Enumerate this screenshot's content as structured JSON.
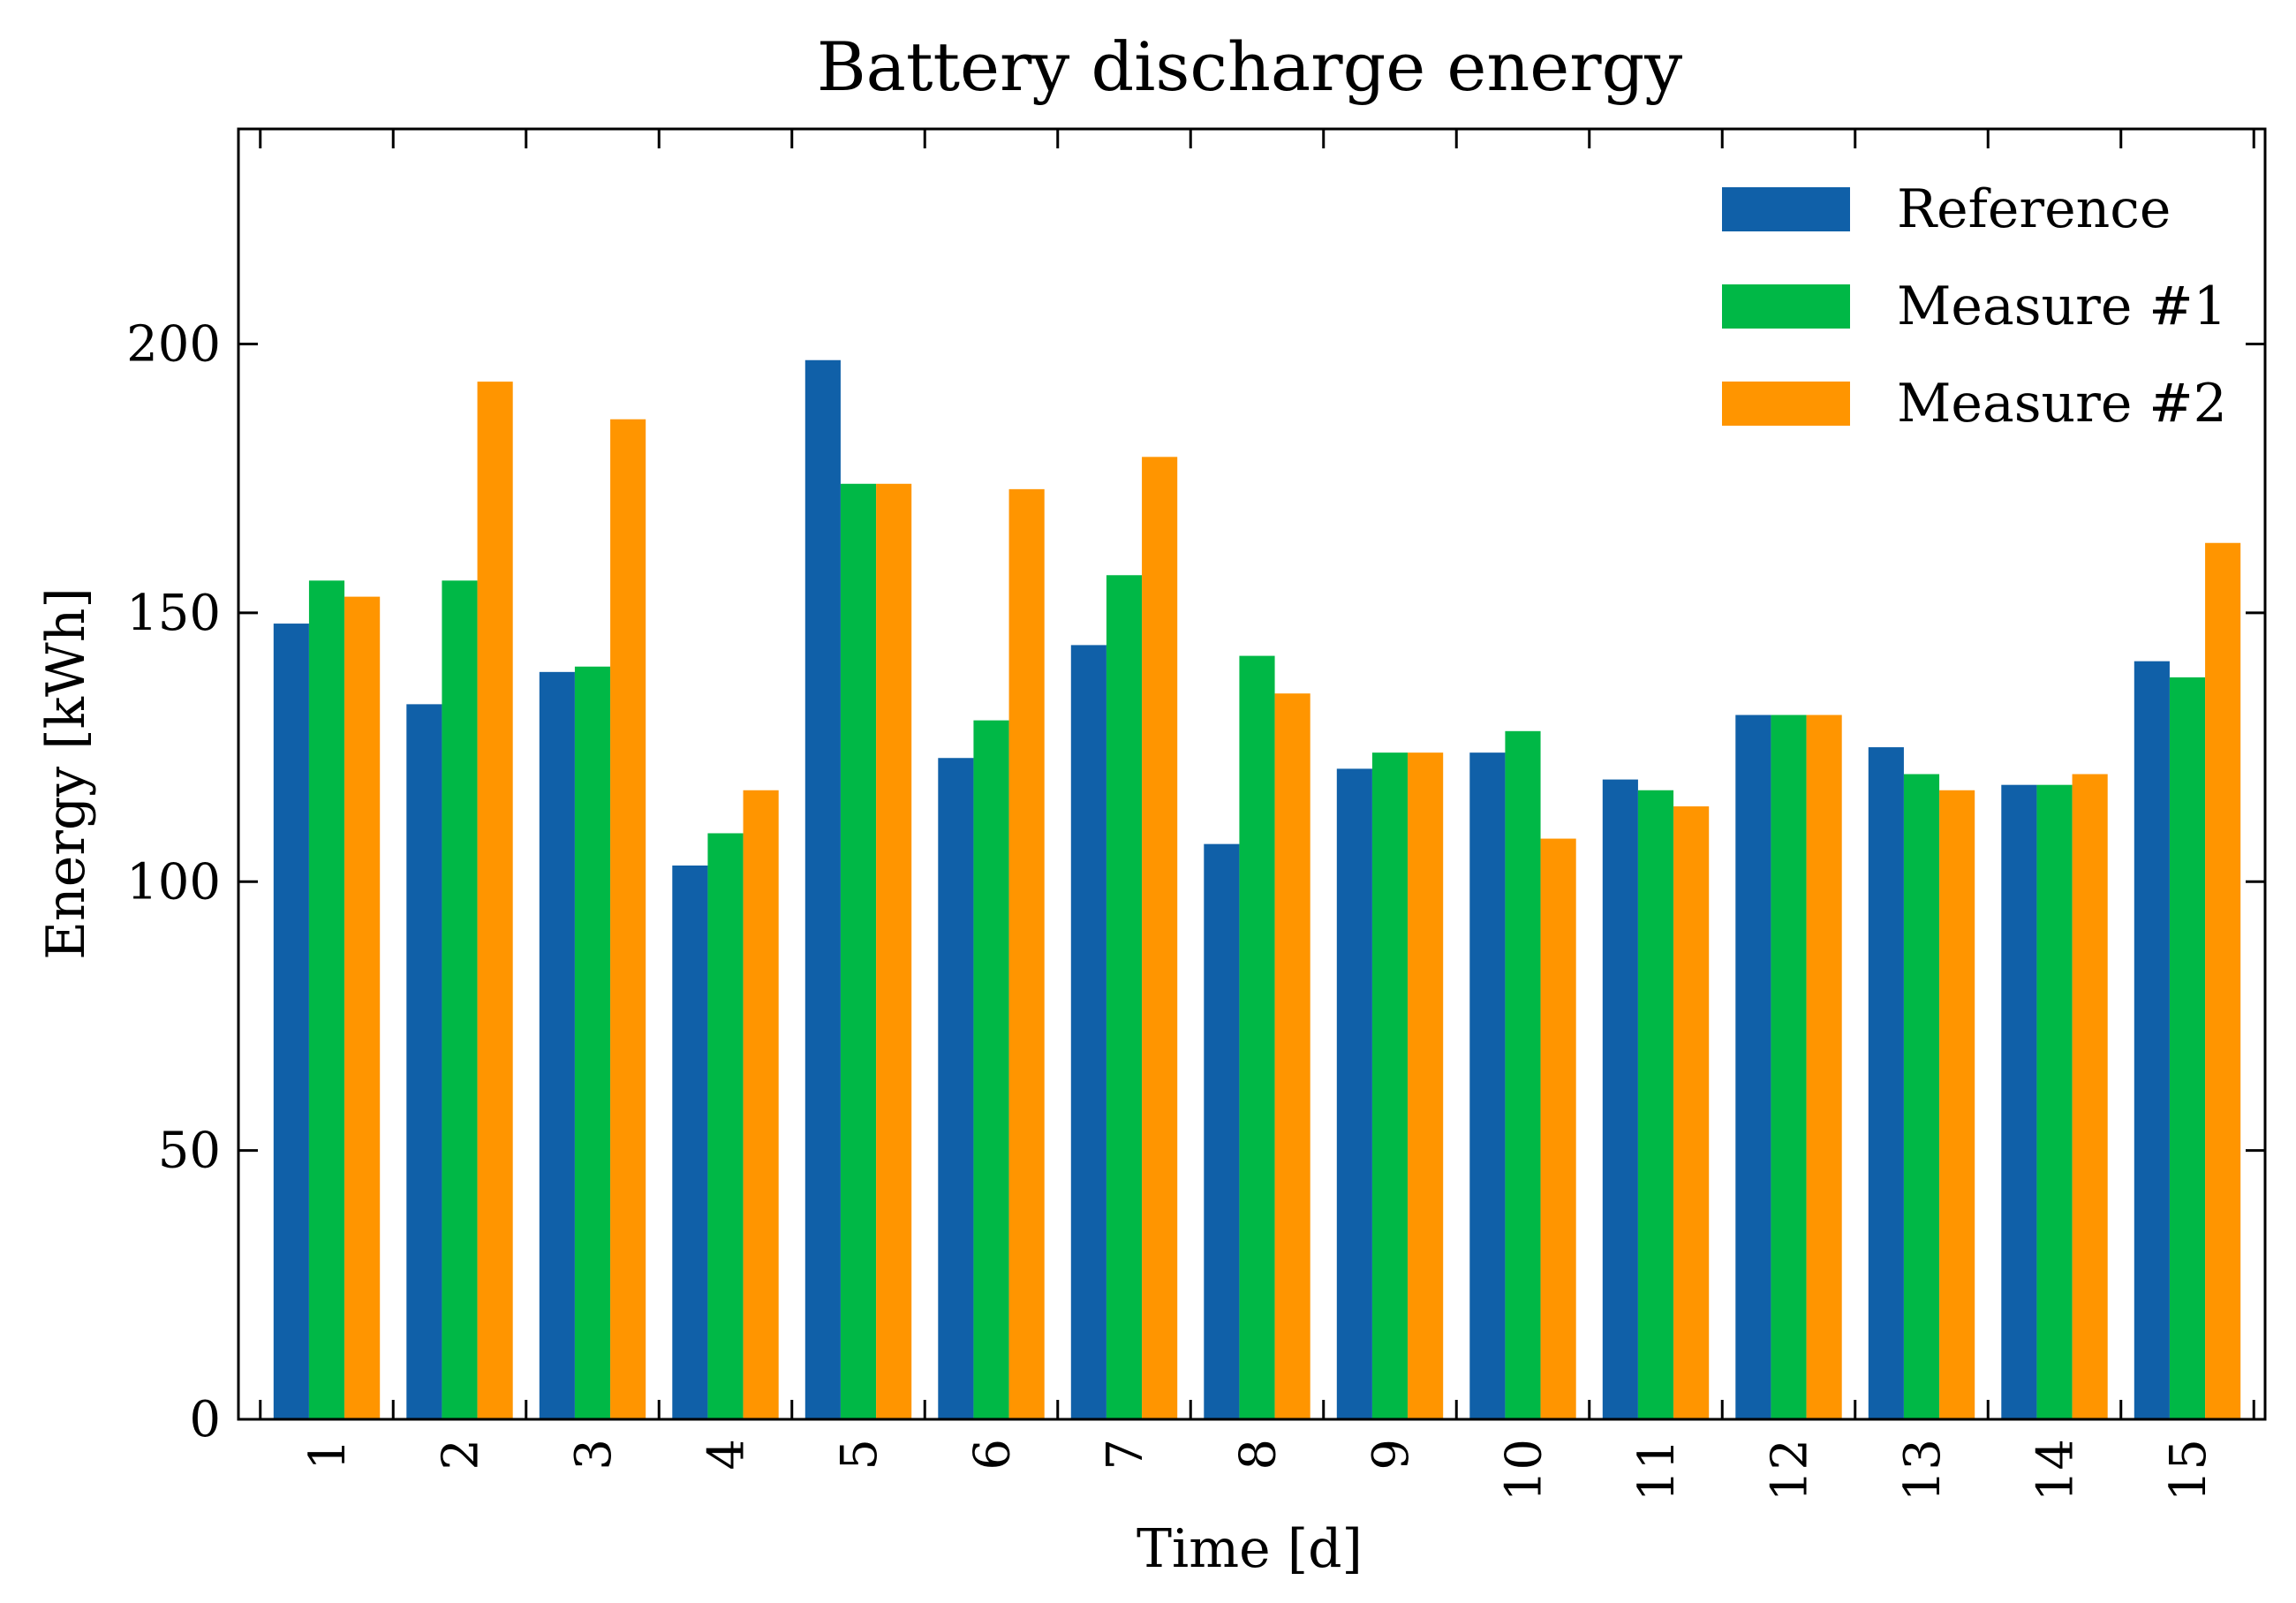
{
  "chart_data": {
    "type": "bar",
    "title": "Battery discharge energy",
    "xlabel": "Time [d]",
    "ylabel": "Energy [kWh]",
    "categories": [
      "1",
      "2",
      "3",
      "4",
      "5",
      "6",
      "7",
      "8",
      "9",
      "10",
      "11",
      "12",
      "13",
      "14",
      "15"
    ],
    "series": [
      {
        "name": "Reference",
        "color": "#1060a8",
        "values": [
          148,
          133,
          139,
          103,
          197,
          123,
          144,
          107,
          121,
          124,
          119,
          131,
          125,
          118,
          141
        ]
      },
      {
        "name": "Measure #1",
        "color": "#00b846",
        "values": [
          156,
          156,
          140,
          109,
          174,
          130,
          157,
          142,
          124,
          128,
          117,
          131,
          120,
          118,
          138
        ]
      },
      {
        "name": "Measure #2",
        "color": "#ff9500",
        "values": [
          153,
          193,
          186,
          117,
          174,
          173,
          179,
          135,
          124,
          108,
          114,
          131,
          117,
          120,
          163
        ]
      }
    ],
    "ylim": [
      0,
      240
    ],
    "yticks": [
      0,
      50,
      100,
      150,
      200
    ],
    "grid": false,
    "legend_position": "top-right"
  }
}
